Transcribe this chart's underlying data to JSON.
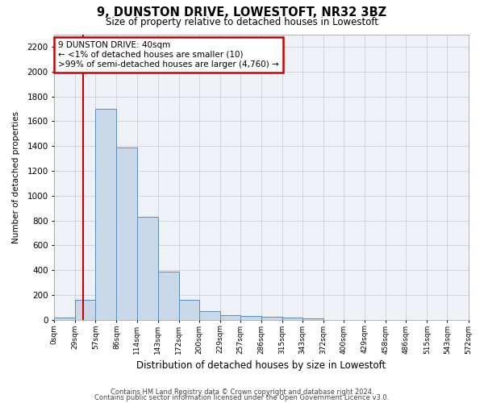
{
  "title": "9, DUNSTON DRIVE, LOWESTOFT, NR32 3BZ",
  "subtitle": "Size of property relative to detached houses in Lowestoft",
  "xlabel": "Distribution of detached houses by size in Lowestoft",
  "ylabel": "Number of detached properties",
  "bin_edges": [
    0,
    29,
    57,
    86,
    114,
    143,
    172,
    200,
    229,
    257,
    286,
    315,
    343,
    372,
    400,
    429,
    458,
    486,
    515,
    543,
    572
  ],
  "bin_labels": [
    "0sqm",
    "29sqm",
    "57sqm",
    "86sqm",
    "114sqm",
    "143sqm",
    "172sqm",
    "200sqm",
    "229sqm",
    "257sqm",
    "286sqm",
    "315sqm",
    "343sqm",
    "372sqm",
    "400sqm",
    "429sqm",
    "458sqm",
    "486sqm",
    "515sqm",
    "543sqm",
    "572sqm"
  ],
  "bar_heights": [
    20,
    160,
    1700,
    1390,
    830,
    390,
    160,
    70,
    40,
    30,
    25,
    20,
    10,
    0,
    0,
    0,
    0,
    0,
    0,
    0
  ],
  "bar_color": "#c8d8e8",
  "bar_edge_color": "#5b8db8",
  "red_line_x": 40,
  "annotation_line1": "9 DUNSTON DRIVE: 40sqm",
  "annotation_line2": "← <1% of detached houses are smaller (10)",
  "annotation_line3": ">99% of semi-detached houses are larger (4,760) →",
  "annotation_box_color": "#ffffff",
  "annotation_box_edge_color": "#cc0000",
  "red_line_color": "#cc0000",
  "ylim": [
    0,
    2300
  ],
  "yticks": [
    0,
    200,
    400,
    600,
    800,
    1000,
    1200,
    1400,
    1600,
    1800,
    2000,
    2200
  ],
  "grid_color": "#c8d0d8",
  "background_color": "#eef2f6",
  "footer1": "Contains HM Land Registry data © Crown copyright and database right 2024.",
  "footer2": "Contains public sector information licensed under the Open Government Licence v3.0."
}
